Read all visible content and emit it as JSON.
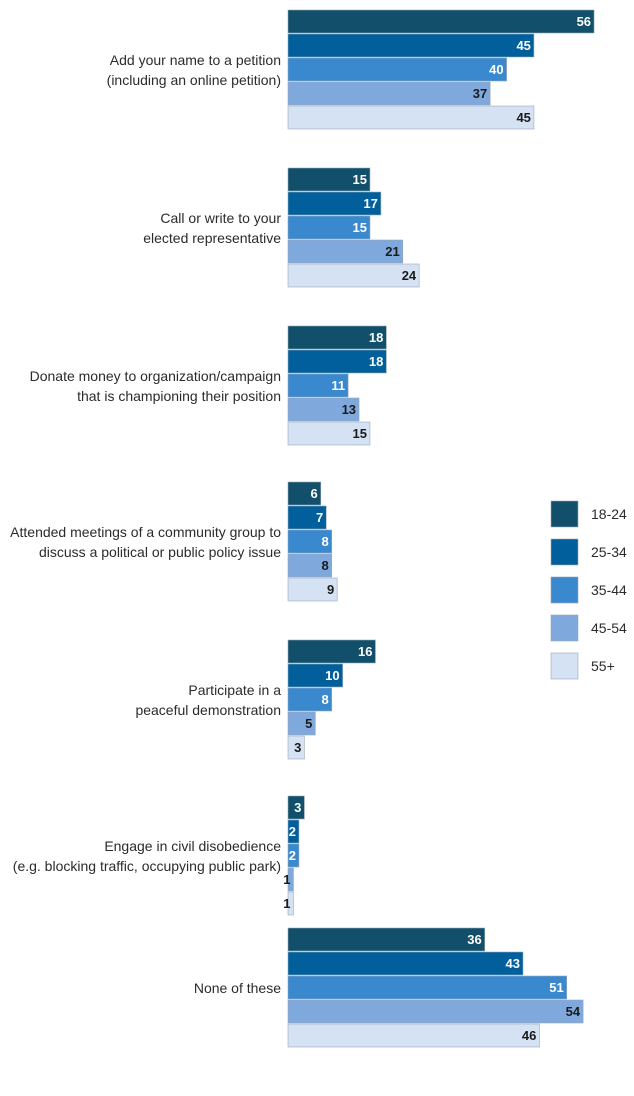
{
  "chart_data": {
    "type": "bar",
    "orientation": "horizontal",
    "categories": [
      [
        "Add your name to a petition",
        "(including an online petition)"
      ],
      [
        "Call or write to your",
        "elected representative"
      ],
      [
        "Donate money to organization/campaign",
        "that is championing their position"
      ],
      [
        "Attended meetings of a community group to",
        "discuss a political or public policy issue"
      ],
      [
        "Participate in a",
        "peaceful demonstration"
      ],
      [
        "Engage in civil disobedience",
        "(e.g. blocking traffic, occupying public park)"
      ],
      [
        "None of these"
      ]
    ],
    "series": [
      {
        "name": "18-24",
        "color": "#124f6b",
        "label_color": "#ffffff",
        "values": [
          56,
          15,
          18,
          6,
          16,
          3,
          36
        ]
      },
      {
        "name": "25-34",
        "color": "#015f9c",
        "label_color": "#ffffff",
        "values": [
          45,
          17,
          18,
          7,
          10,
          2,
          43
        ]
      },
      {
        "name": "35-44",
        "color": "#3a89cf",
        "label_color": "#ffffff",
        "values": [
          40,
          15,
          11,
          8,
          8,
          2,
          51
        ]
      },
      {
        "name": "45-54",
        "color": "#7fa9dc",
        "label_color": "#1a1a1a",
        "values": [
          37,
          21,
          13,
          8,
          5,
          1,
          54
        ]
      },
      {
        "name": "55+",
        "color": "#d5e2f3",
        "label_color": "#1a1a1a",
        "values": [
          45,
          24,
          15,
          9,
          3,
          1,
          46
        ]
      }
    ],
    "legend": "right",
    "grid": false
  }
}
